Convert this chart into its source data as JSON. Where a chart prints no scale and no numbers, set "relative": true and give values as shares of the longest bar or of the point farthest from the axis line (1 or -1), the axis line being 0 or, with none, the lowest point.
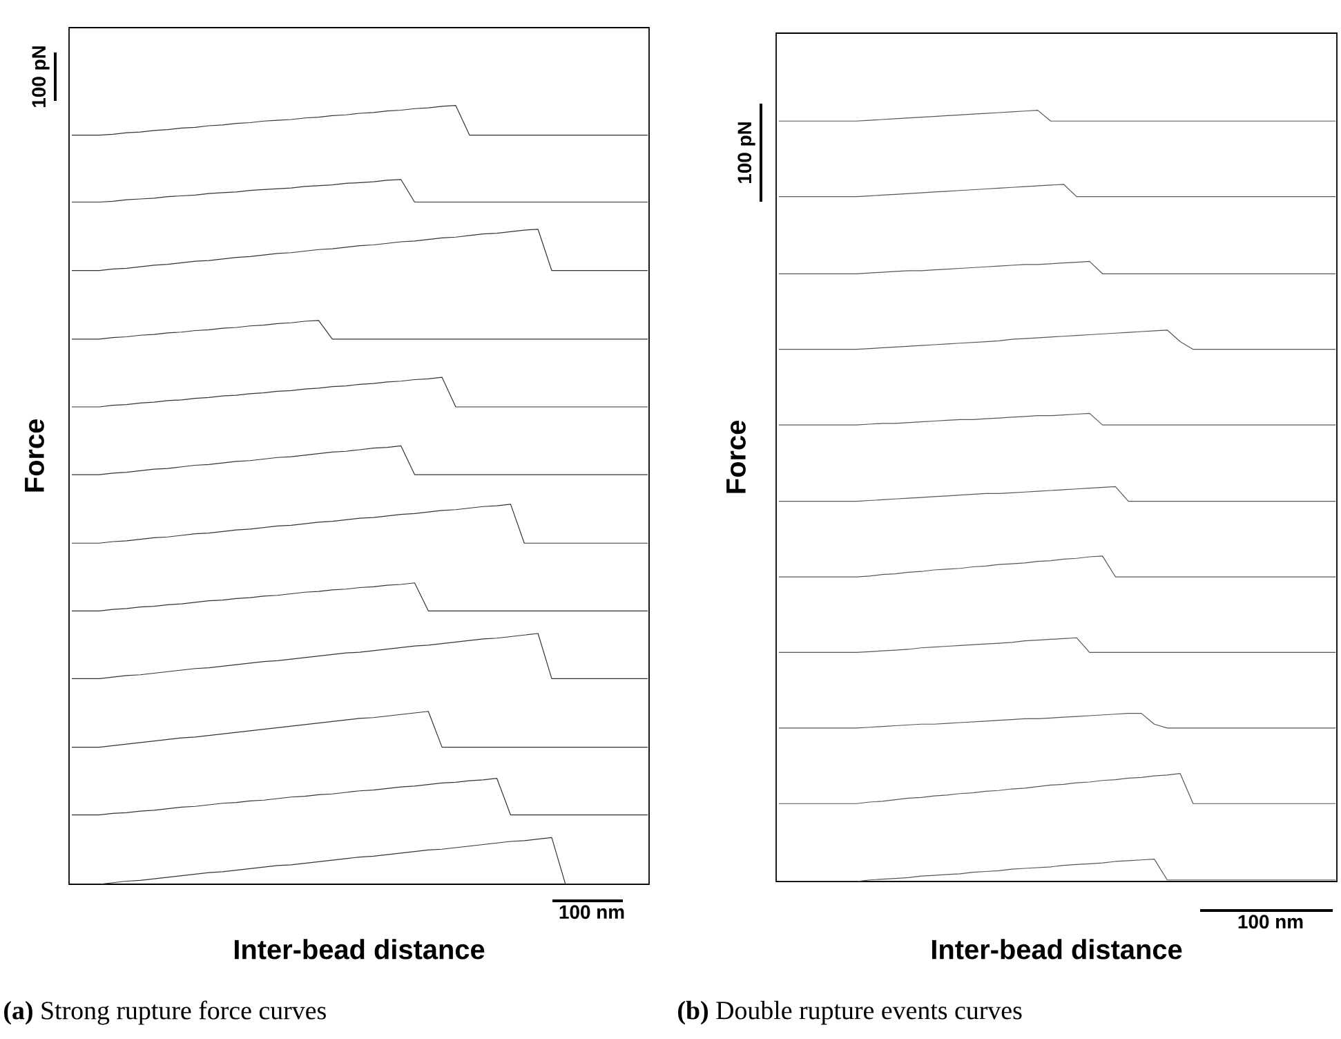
{
  "chart_data": [
    {
      "type": "line",
      "title": "**(a)** Strong rupture force curves",
      "xlabel": "Inter-bead distance",
      "ylabel": "Force",
      "relative": true,
      "color": "#333333",
      "categories": [
        null,
        null,
        null,
        null,
        null,
        null,
        null,
        null,
        null,
        null,
        null,
        null,
        null,
        null,
        null,
        null,
        null,
        null,
        null,
        null,
        null,
        null,
        null,
        null,
        null,
        null,
        null,
        null,
        null,
        null,
        null,
        null,
        null,
        null,
        null,
        null,
        null,
        null,
        null,
        null,
        null,
        null,
        null
      ],
      "annotations": [
        "100 pN",
        "100 nm"
      ],
      "series": [
        {
          "values": [
            0.962,
            0.962,
            0.962,
            0.963,
            0.965,
            0.966,
            0.968,
            0.969,
            0.971,
            0.972,
            0.974,
            0.975,
            0.977,
            0.978,
            0.98,
            0.981,
            0.982,
            0.984,
            0.985,
            0.987,
            0.988,
            0.99,
            0.991,
            0.993,
            0.994,
            0.996,
            0.997,
            0.999,
            1.0,
            0.962,
            0.962,
            0.962,
            0.962,
            0.962,
            0.962,
            0.962,
            0.962,
            0.962,
            0.962,
            0.962,
            0.962,
            0.962,
            0.962
          ]
        },
        {
          "values": [
            0.876,
            0.876,
            0.876,
            0.877,
            0.879,
            0.88,
            0.881,
            0.883,
            0.884,
            0.885,
            0.887,
            0.888,
            0.889,
            0.891,
            0.892,
            0.893,
            0.894,
            0.896,
            0.897,
            0.898,
            0.9,
            0.901,
            0.902,
            0.904,
            0.905,
            0.876,
            0.876,
            0.876,
            0.876,
            0.876,
            0.876,
            0.876,
            0.876,
            0.876,
            0.876,
            0.876,
            0.876,
            0.876,
            0.876,
            0.876,
            0.876,
            0.876,
            0.876
          ]
        },
        {
          "values": [
            0.788,
            0.788,
            0.788,
            0.79,
            0.791,
            0.793,
            0.795,
            0.796,
            0.798,
            0.8,
            0.801,
            0.803,
            0.805,
            0.806,
            0.808,
            0.81,
            0.811,
            0.813,
            0.815,
            0.816,
            0.818,
            0.82,
            0.821,
            0.823,
            0.825,
            0.826,
            0.828,
            0.83,
            0.831,
            0.833,
            0.835,
            0.836,
            0.838,
            0.84,
            0.841,
            0.788,
            0.788,
            0.788,
            0.788,
            0.788,
            0.788,
            0.788,
            0.788
          ]
        },
        {
          "values": [
            0.7,
            0.7,
            0.7,
            0.702,
            0.703,
            0.705,
            0.706,
            0.708,
            0.709,
            0.711,
            0.712,
            0.714,
            0.715,
            0.717,
            0.718,
            0.72,
            0.721,
            0.723,
            0.724,
            0.7,
            0.7,
            0.7,
            0.7,
            0.7,
            0.7,
            0.7,
            0.7,
            0.7,
            0.7,
            0.7,
            0.7,
            0.7,
            0.7,
            0.7,
            0.7,
            0.7,
            0.7,
            0.7,
            0.7,
            0.7,
            0.7,
            0.7,
            0.7
          ]
        },
        {
          "values": [
            0.613,
            0.613,
            0.613,
            0.615,
            0.616,
            0.618,
            0.619,
            0.621,
            0.622,
            0.624,
            0.625,
            0.627,
            0.628,
            0.63,
            0.631,
            0.633,
            0.634,
            0.636,
            0.637,
            0.639,
            0.64,
            0.642,
            0.643,
            0.645,
            0.646,
            0.648,
            0.649,
            0.651,
            0.613,
            0.613,
            0.613,
            0.613,
            0.613,
            0.613,
            0.613,
            0.613,
            0.613,
            0.613,
            0.613,
            0.613,
            0.613,
            0.613,
            0.613
          ]
        },
        {
          "values": [
            0.526,
            0.526,
            0.526,
            0.528,
            0.529,
            0.531,
            0.533,
            0.534,
            0.536,
            0.538,
            0.539,
            0.541,
            0.543,
            0.544,
            0.546,
            0.548,
            0.549,
            0.551,
            0.553,
            0.555,
            0.556,
            0.558,
            0.56,
            0.561,
            0.563,
            0.526,
            0.526,
            0.526,
            0.526,
            0.526,
            0.526,
            0.526,
            0.526,
            0.526,
            0.526,
            0.526,
            0.526,
            0.526,
            0.526,
            0.526,
            0.526,
            0.526,
            0.526
          ]
        },
        {
          "values": [
            0.438,
            0.438,
            0.438,
            0.44,
            0.441,
            0.443,
            0.445,
            0.446,
            0.448,
            0.45,
            0.451,
            0.453,
            0.455,
            0.456,
            0.458,
            0.46,
            0.461,
            0.463,
            0.465,
            0.466,
            0.468,
            0.47,
            0.471,
            0.473,
            0.475,
            0.476,
            0.478,
            0.48,
            0.481,
            0.483,
            0.485,
            0.486,
            0.488,
            0.438,
            0.438,
            0.438,
            0.438,
            0.438,
            0.438,
            0.438,
            0.438,
            0.438,
            0.438
          ]
        },
        {
          "values": [
            0.351,
            0.351,
            0.351,
            0.353,
            0.354,
            0.356,
            0.357,
            0.359,
            0.36,
            0.362,
            0.364,
            0.365,
            0.367,
            0.368,
            0.37,
            0.371,
            0.373,
            0.375,
            0.376,
            0.378,
            0.379,
            0.381,
            0.382,
            0.384,
            0.385,
            0.387,
            0.351,
            0.351,
            0.351,
            0.351,
            0.351,
            0.351,
            0.351,
            0.351,
            0.351,
            0.351,
            0.351,
            0.351,
            0.351,
            0.351,
            0.351,
            0.351,
            0.351
          ]
        },
        {
          "values": [
            0.264,
            0.264,
            0.264,
            0.266,
            0.268,
            0.269,
            0.271,
            0.273,
            0.275,
            0.277,
            0.278,
            0.28,
            0.282,
            0.284,
            0.286,
            0.287,
            0.289,
            0.291,
            0.293,
            0.295,
            0.297,
            0.298,
            0.3,
            0.302,
            0.304,
            0.306,
            0.307,
            0.309,
            0.311,
            0.313,
            0.315,
            0.316,
            0.318,
            0.32,
            0.322,
            0.264,
            0.264,
            0.264,
            0.264,
            0.264,
            0.264,
            0.264,
            0.264
          ]
        },
        {
          "values": [
            0.176,
            0.176,
            0.176,
            0.178,
            0.18,
            0.182,
            0.184,
            0.186,
            0.188,
            0.189,
            0.191,
            0.193,
            0.195,
            0.197,
            0.199,
            0.201,
            0.203,
            0.205,
            0.207,
            0.209,
            0.211,
            0.213,
            0.214,
            0.216,
            0.218,
            0.22,
            0.222,
            0.176,
            0.176,
            0.176,
            0.176,
            0.176,
            0.176,
            0.176,
            0.176,
            0.176,
            0.176,
            0.176,
            0.176,
            0.176,
            0.176,
            0.176,
            0.176
          ]
        },
        {
          "values": [
            0.089,
            0.089,
            0.089,
            0.091,
            0.092,
            0.094,
            0.095,
            0.097,
            0.099,
            0.1,
            0.102,
            0.104,
            0.105,
            0.107,
            0.108,
            0.11,
            0.112,
            0.113,
            0.115,
            0.116,
            0.118,
            0.12,
            0.121,
            0.123,
            0.125,
            0.126,
            0.128,
            0.13,
            0.131,
            0.133,
            0.134,
            0.136,
            0.089,
            0.089,
            0.089,
            0.089,
            0.089,
            0.089,
            0.089,
            0.089,
            0.089,
            0.089,
            0.089
          ]
        },
        {
          "values": [
            0.0,
            0.0,
            0.0,
            0.002,
            0.004,
            0.005,
            0.007,
            0.009,
            0.011,
            0.013,
            0.015,
            0.016,
            0.018,
            0.02,
            0.022,
            0.024,
            0.025,
            0.027,
            0.029,
            0.031,
            0.033,
            0.035,
            0.036,
            0.038,
            0.04,
            0.042,
            0.044,
            0.045,
            0.047,
            0.049,
            0.051,
            0.053,
            0.055,
            0.056,
            0.058,
            0.06,
            0.0,
            0.0,
            0.0,
            0.0,
            0.0,
            0.0,
            0.0
          ]
        }
      ]
    },
    {
      "type": "line",
      "title": "**(b)** Double rupture events curves",
      "xlabel": "Inter-bead distance",
      "ylabel": "Force",
      "relative": true,
      "color": "#555555",
      "categories": [
        null,
        null,
        null,
        null,
        null,
        null,
        null,
        null,
        null,
        null,
        null,
        null,
        null,
        null,
        null,
        null,
        null,
        null,
        null,
        null,
        null,
        null,
        null,
        null,
        null,
        null,
        null,
        null,
        null,
        null,
        null,
        null,
        null,
        null,
        null,
        null,
        null,
        null,
        null,
        null,
        null,
        null,
        null,
        null
      ],
      "annotations": [
        "100 pN",
        "100 nm"
      ],
      "series": [
        {
          "values": [
            0.986,
            0.986,
            0.986,
            0.986,
            0.986,
            0.986,
            0.986,
            0.987,
            0.988,
            0.989,
            0.99,
            0.991,
            0.992,
            0.993,
            0.994,
            0.995,
            0.996,
            0.997,
            0.998,
            0.999,
            1.0,
            0.986,
            0.986,
            0.986,
            0.986,
            0.986,
            0.986,
            0.986,
            0.986,
            0.986,
            0.986,
            0.986,
            0.986,
            0.986,
            0.986,
            0.986,
            0.986,
            0.986,
            0.986,
            0.986,
            0.986,
            0.986,
            0.986,
            0.986
          ]
        },
        {
          "values": [
            0.888,
            0.888,
            0.888,
            0.888,
            0.888,
            0.888,
            0.888,
            0.889,
            0.89,
            0.891,
            0.892,
            0.893,
            0.894,
            0.895,
            0.896,
            0.897,
            0.898,
            0.899,
            0.9,
            0.901,
            0.902,
            0.903,
            0.904,
            0.888,
            0.888,
            0.888,
            0.888,
            0.888,
            0.888,
            0.888,
            0.888,
            0.888,
            0.888,
            0.888,
            0.888,
            0.888,
            0.888,
            0.888,
            0.888,
            0.888,
            0.888,
            0.888,
            0.888,
            0.888
          ]
        },
        {
          "values": [
            0.788,
            0.788,
            0.788,
            0.788,
            0.788,
            0.788,
            0.788,
            0.789,
            0.79,
            0.791,
            0.792,
            0.792,
            0.793,
            0.794,
            0.795,
            0.796,
            0.797,
            0.798,
            0.799,
            0.8,
            0.8,
            0.801,
            0.802,
            0.803,
            0.804,
            0.788,
            0.788,
            0.788,
            0.788,
            0.788,
            0.788,
            0.788,
            0.788,
            0.788,
            0.788,
            0.788,
            0.788,
            0.788,
            0.788,
            0.788,
            0.788,
            0.788,
            0.788,
            0.788
          ]
        },
        {
          "values": [
            0.69,
            0.69,
            0.69,
            0.69,
            0.69,
            0.69,
            0.69,
            0.691,
            0.692,
            0.693,
            0.694,
            0.695,
            0.696,
            0.697,
            0.698,
            0.699,
            0.7,
            0.701,
            0.703,
            0.704,
            0.705,
            0.706,
            0.707,
            0.708,
            0.709,
            0.71,
            0.711,
            0.712,
            0.713,
            0.714,
            0.715,
            0.7,
            0.69,
            0.69,
            0.69,
            0.69,
            0.69,
            0.69,
            0.69,
            0.69,
            0.69,
            0.69,
            0.69,
            0.69
          ]
        },
        {
          "values": [
            0.592,
            0.592,
            0.592,
            0.592,
            0.592,
            0.592,
            0.592,
            0.593,
            0.594,
            0.594,
            0.595,
            0.596,
            0.597,
            0.598,
            0.599,
            0.599,
            0.6,
            0.601,
            0.602,
            0.603,
            0.604,
            0.604,
            0.605,
            0.606,
            0.607,
            0.592,
            0.592,
            0.592,
            0.592,
            0.592,
            0.592,
            0.592,
            0.592,
            0.592,
            0.592,
            0.592,
            0.592,
            0.592,
            0.592,
            0.592,
            0.592,
            0.592,
            0.592,
            0.592
          ]
        },
        {
          "values": [
            0.493,
            0.493,
            0.493,
            0.493,
            0.493,
            0.493,
            0.493,
            0.494,
            0.495,
            0.496,
            0.497,
            0.498,
            0.499,
            0.5,
            0.501,
            0.502,
            0.503,
            0.503,
            0.504,
            0.505,
            0.506,
            0.507,
            0.508,
            0.509,
            0.51,
            0.511,
            0.512,
            0.493,
            0.493,
            0.493,
            0.493,
            0.493,
            0.493,
            0.493,
            0.493,
            0.493,
            0.493,
            0.493,
            0.493,
            0.493,
            0.493,
            0.493,
            0.493,
            0.493
          ]
        },
        {
          "values": [
            0.395,
            0.395,
            0.395,
            0.395,
            0.395,
            0.395,
            0.395,
            0.396,
            0.398,
            0.399,
            0.401,
            0.402,
            0.404,
            0.405,
            0.406,
            0.408,
            0.409,
            0.411,
            0.412,
            0.413,
            0.415,
            0.416,
            0.418,
            0.419,
            0.421,
            0.422,
            0.395,
            0.395,
            0.395,
            0.395,
            0.395,
            0.395,
            0.395,
            0.395,
            0.395,
            0.395,
            0.395,
            0.395,
            0.395,
            0.395,
            0.395,
            0.395,
            0.395,
            0.395
          ]
        },
        {
          "values": [
            0.297,
            0.297,
            0.297,
            0.297,
            0.297,
            0.297,
            0.297,
            0.298,
            0.299,
            0.3,
            0.301,
            0.303,
            0.304,
            0.305,
            0.306,
            0.307,
            0.308,
            0.309,
            0.31,
            0.312,
            0.313,
            0.314,
            0.315,
            0.316,
            0.297,
            0.297,
            0.297,
            0.297,
            0.297,
            0.297,
            0.297,
            0.297,
            0.297,
            0.297,
            0.297,
            0.297,
            0.297,
            0.297,
            0.297,
            0.297,
            0.297,
            0.297,
            0.297,
            0.297
          ]
        },
        {
          "values": [
            0.199,
            0.199,
            0.199,
            0.199,
            0.199,
            0.199,
            0.199,
            0.2,
            0.201,
            0.202,
            0.203,
            0.204,
            0.204,
            0.205,
            0.206,
            0.207,
            0.208,
            0.209,
            0.21,
            0.211,
            0.211,
            0.212,
            0.213,
            0.214,
            0.215,
            0.216,
            0.217,
            0.218,
            0.218,
            0.204,
            0.199,
            0.199,
            0.199,
            0.199,
            0.199,
            0.199,
            0.199,
            0.199,
            0.199,
            0.199,
            0.199,
            0.199,
            0.199,
            0.199
          ]
        },
        {
          "values": [
            0.101,
            0.101,
            0.101,
            0.101,
            0.101,
            0.101,
            0.101,
            0.103,
            0.104,
            0.106,
            0.108,
            0.109,
            0.111,
            0.112,
            0.114,
            0.115,
            0.117,
            0.118,
            0.12,
            0.121,
            0.123,
            0.125,
            0.126,
            0.128,
            0.129,
            0.131,
            0.132,
            0.134,
            0.135,
            0.137,
            0.138,
            0.14,
            0.101,
            0.101,
            0.101,
            0.101,
            0.101,
            0.101,
            0.101,
            0.101,
            0.101,
            0.101,
            0.101,
            0.101
          ]
        },
        {
          "values": [
            0.0,
            0.0,
            0.0,
            0.0,
            0.0,
            0.0,
            0.0,
            0.002,
            0.003,
            0.004,
            0.005,
            0.007,
            0.008,
            0.009,
            0.01,
            0.012,
            0.013,
            0.014,
            0.016,
            0.017,
            0.018,
            0.019,
            0.021,
            0.022,
            0.023,
            0.024,
            0.026,
            0.027,
            0.028,
            0.029,
            0.002,
            0.002,
            0.002,
            0.002,
            0.002,
            0.002,
            0.002,
            0.002,
            0.002,
            0.002,
            0.002,
            0.002,
            0.002,
            0.002
          ]
        }
      ]
    }
  ]
}
